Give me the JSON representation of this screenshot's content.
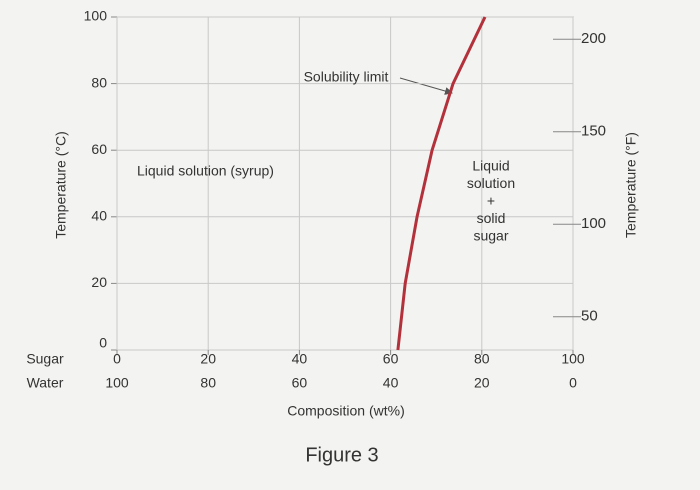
{
  "chart_data": {
    "type": "line",
    "x": [
      61.6,
      63.2,
      65.8,
      69.1,
      73.7,
      80.7
    ],
    "values": [
      0,
      20,
      40,
      60,
      80,
      100
    ],
    "color": "#b3313b",
    "xlim": [
      0,
      100
    ],
    "xticks": [
      0,
      20,
      40,
      60,
      80,
      100
    ],
    "x2lim": [
      100,
      0
    ],
    "x2ticks": [
      100,
      80,
      60,
      40,
      20,
      0
    ],
    "ylim": [
      0,
      100
    ],
    "yticks": [
      0,
      20,
      40,
      60,
      80,
      100
    ],
    "y2lim": [
      32,
      212
    ],
    "y2ticks": [
      50,
      100,
      150,
      200
    ],
    "grid": true,
    "x_row_label": "Sugar",
    "x2_row_label": "Water",
    "xlabel": "Composition (wt%)",
    "ylabel": "Temperature (°C)",
    "y2label": "Temperature (°F)",
    "annotations": {
      "solubility_limit": "Solubility limit",
      "syrup": "Liquid solution (syrup)",
      "two_phase": [
        "Liquid",
        "solution",
        "+",
        "solid",
        "sugar"
      ]
    },
    "figure_label": "Figure 3"
  }
}
